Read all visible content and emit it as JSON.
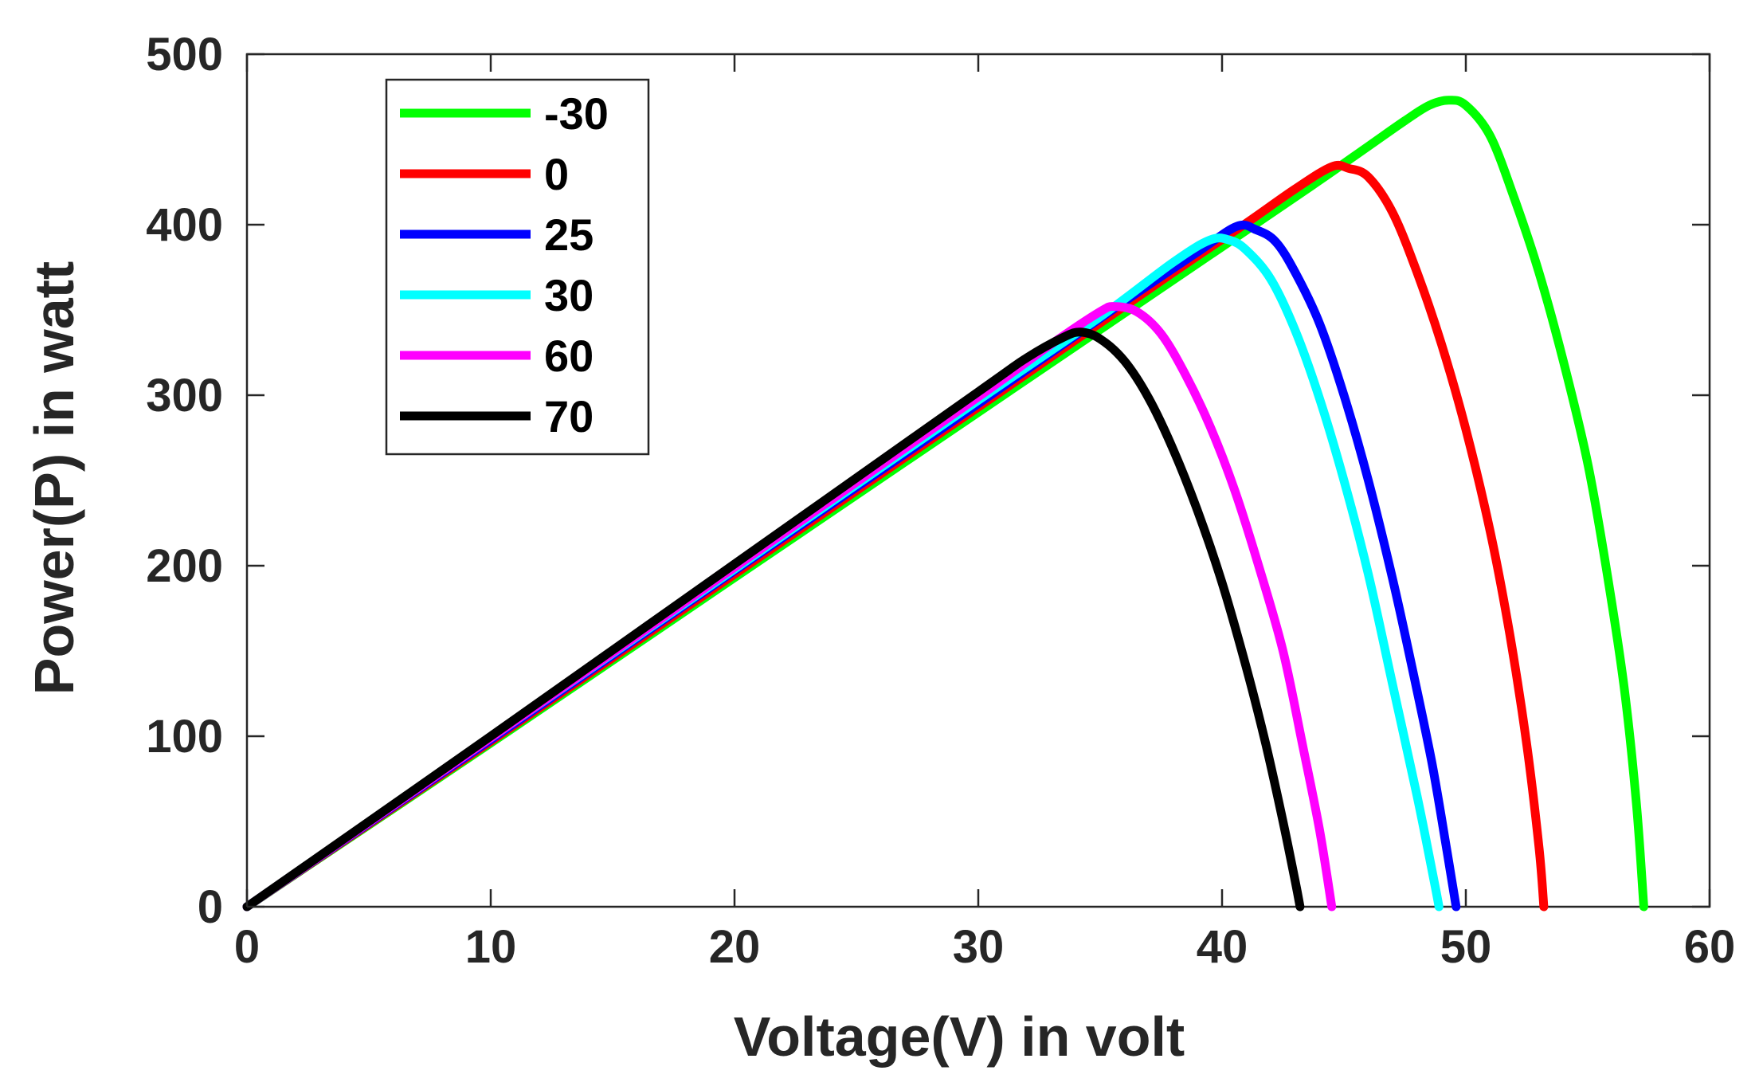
{
  "chart_data": {
    "type": "line",
    "title": "",
    "xlabel": "Voltage(V) in volt",
    "ylabel": "Power(P) in watt",
    "xlim": [
      0,
      60
    ],
    "ylim": [
      0,
      500
    ],
    "xticks": [
      0,
      10,
      20,
      30,
      40,
      50,
      60
    ],
    "yticks": [
      0,
      100,
      200,
      300,
      400,
      500
    ],
    "xtick_labels": [
      "0",
      "10",
      "20",
      "30",
      "40",
      "50",
      "60"
    ],
    "ytick_labels": [
      "0",
      "100",
      "200",
      "300",
      "400",
      "500"
    ],
    "grid": false,
    "legend_position": "top-left",
    "series": [
      {
        "name": "-30",
        "color": "#00ff00",
        "points": [
          [
            0,
            0
          ],
          [
            10,
            96
          ],
          [
            20,
            193
          ],
          [
            30,
            290
          ],
          [
            40,
            387
          ],
          [
            44,
            426
          ],
          [
            46,
            446
          ],
          [
            47.5,
            461
          ],
          [
            48.5,
            470
          ],
          [
            49.3,
            473
          ],
          [
            50,
            470
          ],
          [
            51,
            452
          ],
          [
            52,
            415
          ],
          [
            53,
            372
          ],
          [
            54,
            320
          ],
          [
            55,
            260
          ],
          [
            55.8,
            195
          ],
          [
            56.5,
            128
          ],
          [
            57,
            60
          ],
          [
            57.3,
            0
          ]
        ]
      },
      {
        "name": "0",
        "color": "#ff0000",
        "points": [
          [
            0,
            0
          ],
          [
            10,
            97
          ],
          [
            20,
            195
          ],
          [
            30,
            293
          ],
          [
            38,
            372
          ],
          [
            41,
            401
          ],
          [
            43,
            421
          ],
          [
            44.5,
            434
          ],
          [
            45.2,
            433
          ],
          [
            46,
            428
          ],
          [
            47,
            407
          ],
          [
            48,
            372
          ],
          [
            49,
            330
          ],
          [
            50,
            280
          ],
          [
            51,
            220
          ],
          [
            51.8,
            160
          ],
          [
            52.5,
            95
          ],
          [
            53,
            35
          ],
          [
            53.2,
            0
          ]
        ]
      },
      {
        "name": "25",
        "color": "#0000ff",
        "points": [
          [
            0,
            0
          ],
          [
            10,
            98
          ],
          [
            20,
            197
          ],
          [
            30,
            295
          ],
          [
            36,
            355
          ],
          [
            39,
            384
          ],
          [
            40.6,
            399
          ],
          [
            41.4,
            397
          ],
          [
            42.2,
            390
          ],
          [
            43,
            372
          ],
          [
            44,
            342
          ],
          [
            45,
            300
          ],
          [
            46,
            250
          ],
          [
            47,
            192
          ],
          [
            47.8,
            140
          ],
          [
            48.6,
            85
          ],
          [
            49.2,
            35
          ],
          [
            49.6,
            0
          ]
        ]
      },
      {
        "name": "30",
        "color": "#00ffff",
        "points": [
          [
            0,
            0
          ],
          [
            10,
            99
          ],
          [
            20,
            198
          ],
          [
            30,
            297
          ],
          [
            35,
            346
          ],
          [
            38,
            378
          ],
          [
            39.5,
            391
          ],
          [
            40.3,
            391
          ],
          [
            41,
            385
          ],
          [
            42,
            368
          ],
          [
            43,
            338
          ],
          [
            44,
            298
          ],
          [
            45,
            250
          ],
          [
            46,
            195
          ],
          [
            47,
            130
          ],
          [
            48,
            65
          ],
          [
            48.7,
            15
          ],
          [
            48.9,
            0
          ]
        ]
      },
      {
        "name": "60",
        "color": "#ff00ff",
        "points": [
          [
            0,
            0
          ],
          [
            10,
            99
          ],
          [
            20,
            199
          ],
          [
            30,
            299
          ],
          [
            33,
            330
          ],
          [
            35,
            349
          ],
          [
            35.6,
            352
          ],
          [
            36.5,
            349
          ],
          [
            37.5,
            336
          ],
          [
            38.5,
            312
          ],
          [
            39.5,
            282
          ],
          [
            40.5,
            245
          ],
          [
            41.5,
            200
          ],
          [
            42.5,
            150
          ],
          [
            43.3,
            95
          ],
          [
            44,
            45
          ],
          [
            44.5,
            0
          ]
        ]
      },
      {
        "name": "70",
        "color": "#000000",
        "points": [
          [
            0,
            0
          ],
          [
            10,
            100
          ],
          [
            20,
            201
          ],
          [
            30,
            302
          ],
          [
            32,
            322
          ],
          [
            33.5,
            334
          ],
          [
            34.2,
            337
          ],
          [
            35,
            333
          ],
          [
            36,
            320
          ],
          [
            37,
            298
          ],
          [
            38,
            268
          ],
          [
            39,
            232
          ],
          [
            40,
            190
          ],
          [
            41,
            140
          ],
          [
            41.8,
            95
          ],
          [
            42.5,
            50
          ],
          [
            43,
            15
          ],
          [
            43.2,
            0
          ]
        ]
      }
    ]
  }
}
